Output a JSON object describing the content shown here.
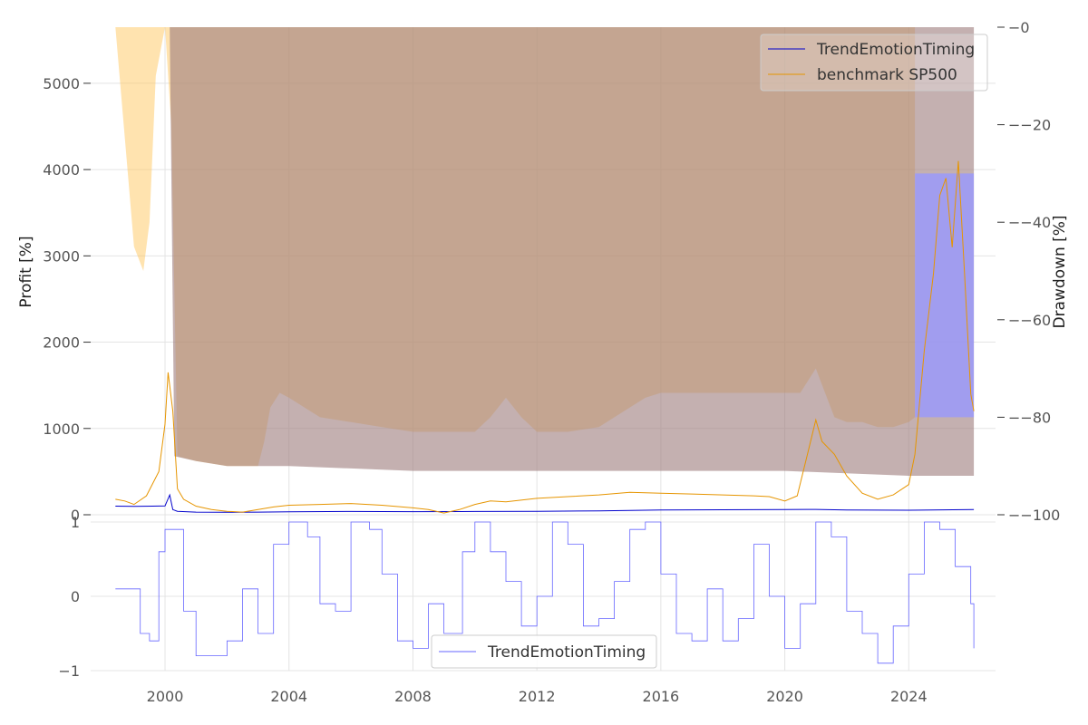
{
  "chart_data": [
    {
      "type": "line",
      "title": "",
      "x_range": [
        1997.6,
        2026.8
      ],
      "x_ticks": [
        "2000",
        "2004",
        "2008",
        "2012",
        "2016",
        "2020",
        "2024"
      ],
      "ylabel": "Profit [%]",
      "ylim": [
        0,
        5650
      ],
      "y_ticks": [
        "0",
        "1000",
        "2000",
        "3000",
        "4000",
        "5000"
      ],
      "y2label": "Drawdown [%]",
      "y2lim": [
        -100,
        0
      ],
      "y2_ticks": [
        "−0",
        "−−20",
        "−−40",
        "−−60",
        "−−80",
        "−−100"
      ],
      "grid": true,
      "legend_position": "top-right",
      "legend": [
        "TrendEmotionTiming",
        "benchmark SP500"
      ],
      "series": [
        {
          "name": "TrendEmotionTiming",
          "color": "#0000cc",
          "x": [
            1998.4,
            1999.0,
            1999.6,
            2000.0,
            2000.15,
            2000.25,
            2000.4,
            2001.0,
            2002.0,
            2003.0,
            2004.0,
            2006.0,
            2008.0,
            2010.0,
            2012.0,
            2014.0,
            2016.0,
            2018.0,
            2020.0,
            2021.0,
            2022.0,
            2024.0,
            2026.1
          ],
          "y": [
            100,
            98,
            100,
            102,
            230,
            60,
            40,
            30,
            28,
            30,
            35,
            38,
            36,
            38,
            40,
            45,
            55,
            58,
            60,
            62,
            55,
            52,
            60
          ]
        },
        {
          "name": "benchmark SP500",
          "color": "#e69500",
          "x": [
            1998.4,
            1998.7,
            1999.0,
            1999.4,
            1999.8,
            2000.0,
            2000.1,
            2000.25,
            2000.4,
            2000.6,
            2001.0,
            2001.5,
            2002.0,
            2002.5,
            2003.0,
            2003.5,
            2004.0,
            2005.0,
            2006.0,
            2007.0,
            2008.0,
            2008.5,
            2009.0,
            2009.5,
            2010.0,
            2010.5,
            2011.0,
            2012.0,
            2013.0,
            2014.0,
            2015.0,
            2016.0,
            2017.0,
            2018.0,
            2019.0,
            2019.5,
            2020.0,
            2020.4,
            2020.8,
            2021.0,
            2021.2,
            2021.6,
            2022.0,
            2022.5,
            2023.0,
            2023.5,
            2024.0,
            2024.2,
            2024.5,
            2024.8,
            2025.0,
            2025.2,
            2025.4,
            2025.6,
            2025.8,
            2026.0,
            2026.1
          ],
          "y": [
            180,
            160,
            120,
            220,
            500,
            1050,
            1650,
            1200,
            300,
            180,
            100,
            60,
            40,
            30,
            60,
            90,
            110,
            120,
            130,
            110,
            80,
            60,
            20,
            60,
            120,
            160,
            150,
            190,
            210,
            230,
            260,
            250,
            240,
            230,
            220,
            210,
            160,
            220,
            800,
            1100,
            850,
            700,
            450,
            250,
            180,
            230,
            350,
            700,
            1900,
            2800,
            3700,
            3900,
            3100,
            4100,
            2800,
            1400,
            1200
          ]
        }
      ],
      "drawdown_series": [
        {
          "name": "TrendEmotionTiming drawdown",
          "color": "#a08080",
          "x": [
            2000.15,
            2000.3,
            2001.0,
            2002.0,
            2004.0,
            2008.0,
            2012.0,
            2016.0,
            2020.0,
            2024.0,
            2024.2,
            2026.1
          ],
          "y": [
            0,
            -88,
            -89,
            -90,
            -90,
            -91,
            -91,
            -91,
            -91,
            -92,
            -92,
            -92
          ]
        },
        {
          "name": "benchmark SP500 drawdown",
          "color": "#ffc04d",
          "x": [
            1998.4,
            1998.8,
            1999.0,
            1999.3,
            1999.5,
            1999.7,
            2000.0,
            2000.2,
            2000.4,
            2001.0,
            2002.0,
            2003.0,
            2003.2,
            2003.4,
            2003.7,
            2004.0,
            2005.0,
            2006.0,
            2007.0,
            2008.0,
            2009.0,
            2010.0,
            2010.5,
            2011.0,
            2011.5,
            2012.0,
            2013.0,
            2014.0,
            2015.0,
            2015.5,
            2016.0,
            2018.0,
            2020.0,
            2020.5,
            2021.0,
            2021.3,
            2021.6,
            2022.0,
            2022.5,
            2023.0,
            2023.5,
            2024.0,
            2024.2
          ],
          "y": [
            0,
            -30,
            -45,
            -50,
            -40,
            -10,
            0,
            -20,
            -88,
            -89,
            -90,
            -90,
            -85,
            -78,
            -75,
            -76,
            -80,
            -81,
            -82,
            -83,
            -83,
            -83,
            -80,
            -76,
            -80,
            -83,
            -83,
            -82,
            -78,
            -76,
            -75,
            -75,
            -75,
            -75,
            -70,
            -75,
            -80,
            -81,
            -81,
            -82,
            -82,
            -81,
            -80
          ]
        }
      ]
    },
    {
      "type": "line",
      "title": "",
      "ylim": [
        -1,
        1
      ],
      "y_ticks": [
        "−1",
        "0",
        "1"
      ],
      "legend_position": "bottom-center",
      "legend": [
        "TrendEmotionTiming"
      ],
      "series": [
        {
          "name": "TrendEmotionTiming",
          "color": "#6666ff",
          "x": [
            1998.4,
            1998.8,
            1999.2,
            1999.5,
            1999.8,
            2000.0,
            2000.2,
            2000.6,
            2001.0,
            2001.5,
            2002.0,
            2002.5,
            2003.0,
            2003.5,
            2004.0,
            2004.6,
            2005.0,
            2005.5,
            2006.0,
            2006.6,
            2007.0,
            2007.5,
            2008.0,
            2008.5,
            2009.0,
            2009.6,
            2010.0,
            2010.5,
            2011.0,
            2011.5,
            2012.0,
            2012.5,
            2013.0,
            2013.5,
            2014.0,
            2014.5,
            2015.0,
            2015.5,
            2016.0,
            2016.5,
            2017.0,
            2017.5,
            2018.0,
            2018.5,
            2019.0,
            2019.5,
            2020.0,
            2020.5,
            2021.0,
            2021.5,
            2022.0,
            2022.5,
            2023.0,
            2023.5,
            2024.0,
            2024.5,
            2025.0,
            2025.5,
            2026.0,
            2026.1
          ],
          "y": [
            0.1,
            0.1,
            -0.5,
            -0.6,
            0.6,
            0.9,
            0.9,
            -0.2,
            -0.8,
            -0.8,
            -0.6,
            0.1,
            -0.5,
            0.7,
            1.0,
            0.8,
            -0.1,
            -0.2,
            1.0,
            0.9,
            0.3,
            -0.6,
            -0.7,
            -0.1,
            -0.5,
            0.6,
            1.0,
            0.6,
            0.2,
            -0.4,
            0.0,
            1.0,
            0.7,
            -0.4,
            -0.3,
            0.2,
            0.9,
            1.0,
            0.3,
            -0.5,
            -0.6,
            0.1,
            -0.6,
            -0.3,
            0.7,
            0.0,
            -0.7,
            -0.1,
            1.0,
            0.8,
            -0.2,
            -0.5,
            -0.9,
            -0.4,
            0.3,
            1.0,
            0.9,
            0.4,
            -0.1,
            -0.7
          ]
        }
      ]
    }
  ]
}
